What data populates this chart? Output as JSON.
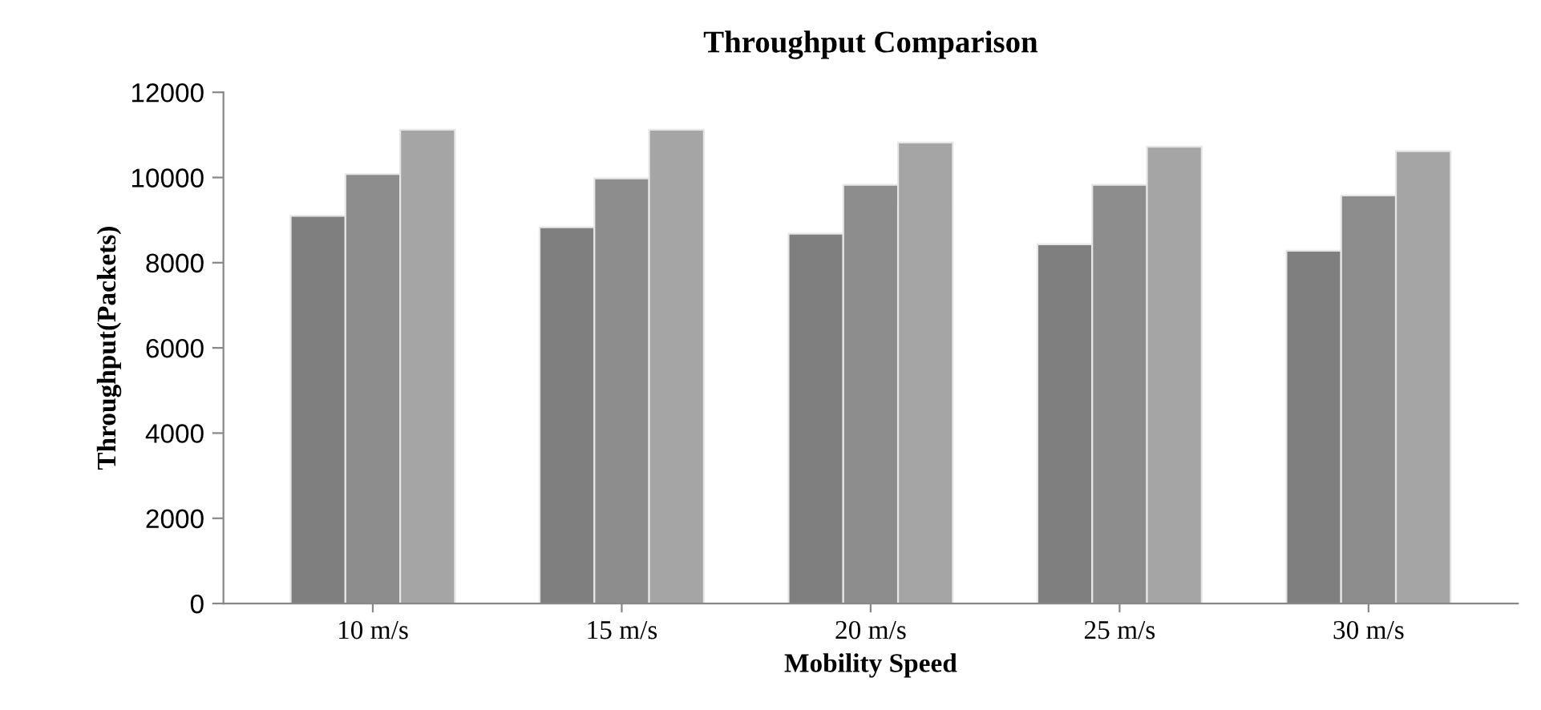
{
  "chart_data": {
    "type": "bar",
    "title": "Throughput Comparison",
    "xlabel": "Mobility Speed",
    "ylabel": "Throughput(Packets)",
    "categories": [
      "10 m/s",
      "15 m/s",
      "20 m/s",
      "25 m/s",
      "30 m/s"
    ],
    "series": [
      {
        "color": "#7f7f7f",
        "values": [
          9100,
          8830,
          8680,
          8430,
          8280
        ]
      },
      {
        "color": "#8d8d8d",
        "values": [
          10080,
          9980,
          9830,
          9830,
          9580
        ]
      },
      {
        "color": "#a5a5a5",
        "values": [
          11120,
          11120,
          10820,
          10720,
          10620
        ]
      }
    ],
    "ylim": [
      0,
      12000
    ],
    "yticks": [
      0,
      2000,
      4000,
      6000,
      8000,
      10000,
      12000
    ],
    "grid": false
  }
}
